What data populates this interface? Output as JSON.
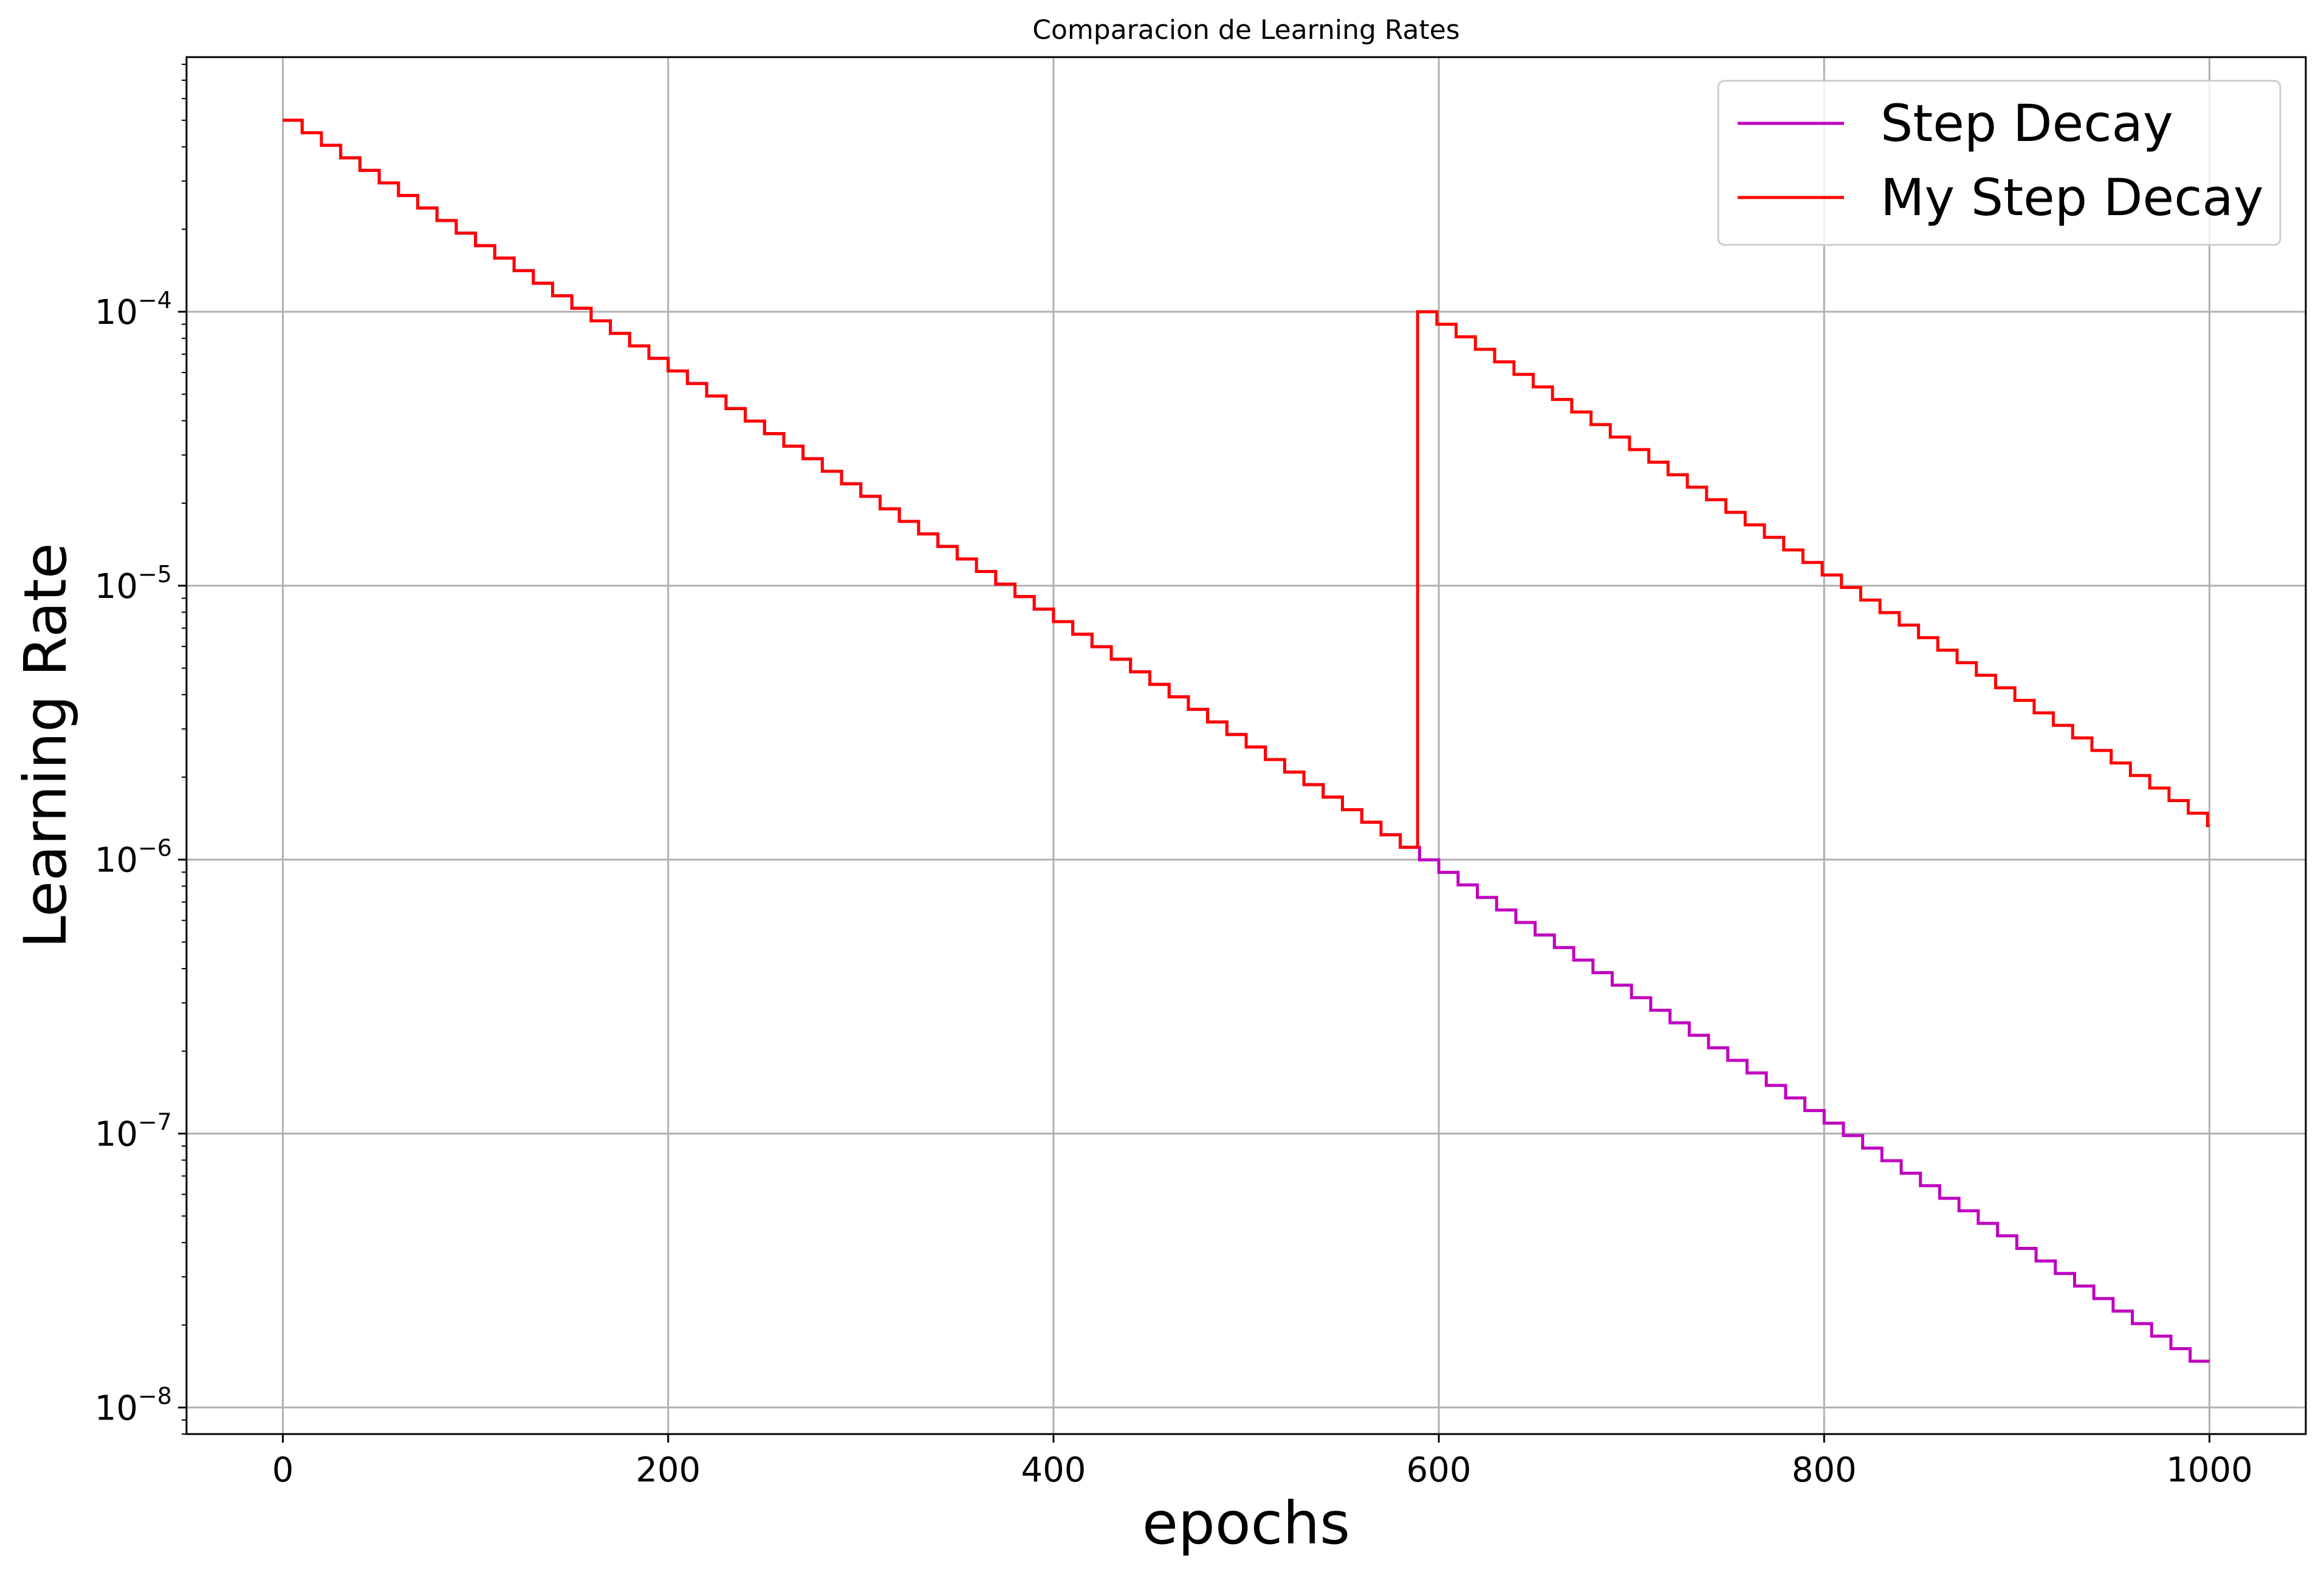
{
  "chart_data": {
    "type": "line",
    "title": "Comparacion de Learning Rates",
    "xlabel": "epochs",
    "ylabel": "Learning Rate",
    "xlim": [
      -50,
      1050
    ],
    "ylim": [
      8e-09,
      0.00085
    ],
    "yscale": "log",
    "grid": true,
    "legend_position": "top-right",
    "x_ticks": [
      {
        "value": 0,
        "label": "0"
      },
      {
        "value": 200,
        "label": "200"
      },
      {
        "value": 400,
        "label": "400"
      },
      {
        "value": 600,
        "label": "600"
      },
      {
        "value": 800,
        "label": "800"
      },
      {
        "value": 1000,
        "label": "1000"
      }
    ],
    "y_ticks": [
      {
        "value": 0.0001,
        "base": "10",
        "exp": "−4"
      },
      {
        "value": 1e-05,
        "base": "10",
        "exp": "−5"
      },
      {
        "value": 1e-06,
        "base": "10",
        "exp": "−6"
      },
      {
        "value": 1e-07,
        "base": "10",
        "exp": "−7"
      },
      {
        "value": 1e-08,
        "base": "10",
        "exp": "−8"
      }
    ],
    "series": [
      {
        "name": "Step Decay",
        "color": "#bf00bf",
        "start_value": 0.0005,
        "decay_factor": 0.9,
        "step_epochs": 10,
        "x_range": [
          0,
          1000
        ]
      },
      {
        "name": "My Step Decay",
        "color": "#ff0000",
        "segments": [
          {
            "x_range": [
              0,
              589
            ],
            "start_epoch": 0,
            "start_value": 0.0005,
            "decay_factor": 0.9,
            "step_epochs": 10
          },
          {
            "x_range": [
              589,
              1000
            ],
            "start_epoch": 589,
            "start_value": 0.0001,
            "decay_factor": 0.9,
            "step_epochs": 10
          }
        ]
      }
    ]
  }
}
